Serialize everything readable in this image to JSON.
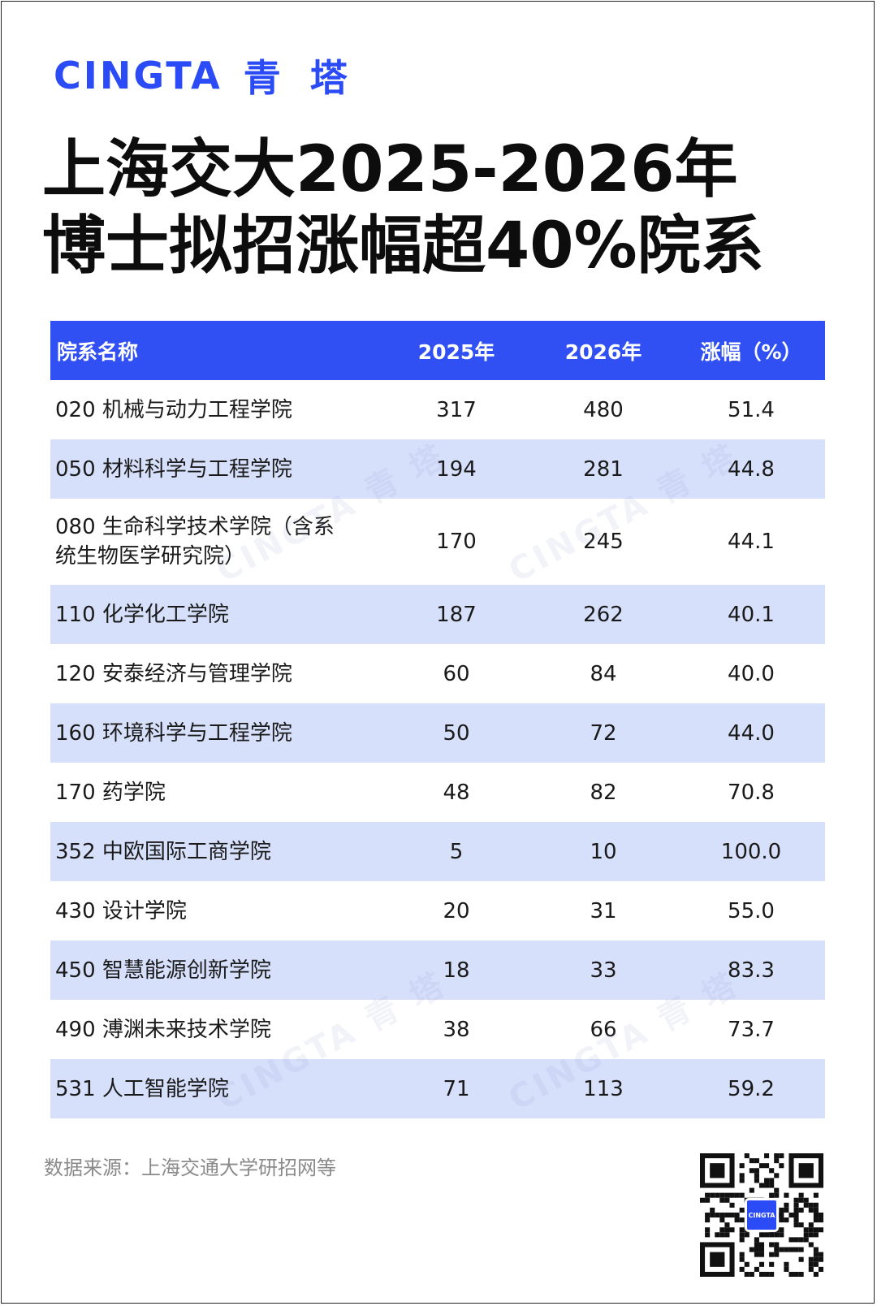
{
  "brand": {
    "en": "CINGTA",
    "cn": "青 塔"
  },
  "title": {
    "line1": "上海交大2025-2026年",
    "line2": "博士拟招涨幅超40%院系"
  },
  "table": {
    "headers": [
      "院系名称",
      "2025年",
      "2026年",
      "涨幅（%）"
    ],
    "rows": [
      {
        "name": "020 机械与动力工程学院",
        "y2025": "317",
        "y2026": "480",
        "growth": "51.4"
      },
      {
        "name": "050 材料科学与工程学院",
        "y2025": "194",
        "y2026": "281",
        "growth": "44.8"
      },
      {
        "name_line1": "080 生命科学技术学院（含系",
        "name_line2": "统生物医学研究院）",
        "y2025": "170",
        "y2026": "245",
        "growth": "44.1"
      },
      {
        "name": "110 化学化工学院",
        "y2025": "187",
        "y2026": "262",
        "growth": "40.1"
      },
      {
        "name": "120 安泰经济与管理学院",
        "y2025": "60",
        "y2026": "84",
        "growth": "40.0"
      },
      {
        "name": "160 环境科学与工程学院",
        "y2025": "50",
        "y2026": "72",
        "growth": "44.0"
      },
      {
        "name": "170 药学院",
        "y2025": "48",
        "y2026": "82",
        "growth": "70.8"
      },
      {
        "name": "352 中欧国际工商学院",
        "y2025": "5",
        "y2026": "10",
        "growth": "100.0"
      },
      {
        "name": "430 设计学院",
        "y2025": "20",
        "y2026": "31",
        "growth": "55.0"
      },
      {
        "name": "450 智慧能源创新学院",
        "y2025": "18",
        "y2026": "33",
        "growth": "83.3"
      },
      {
        "name": "490 溥渊未来技术学院",
        "y2025": "38",
        "y2026": "66",
        "growth": "73.7"
      },
      {
        "name": "531 人工智能学院",
        "y2025": "71",
        "y2026": "113",
        "growth": "59.2"
      }
    ]
  },
  "watermark_text": "CINGTA 青 塔",
  "source": "数据来源：上海交通大学研招网等",
  "qr_label": "CINGTA",
  "colors": {
    "brand": "#2a4bf5",
    "header_bg": "#3150f3",
    "stripe": "#d7e0fb"
  }
}
